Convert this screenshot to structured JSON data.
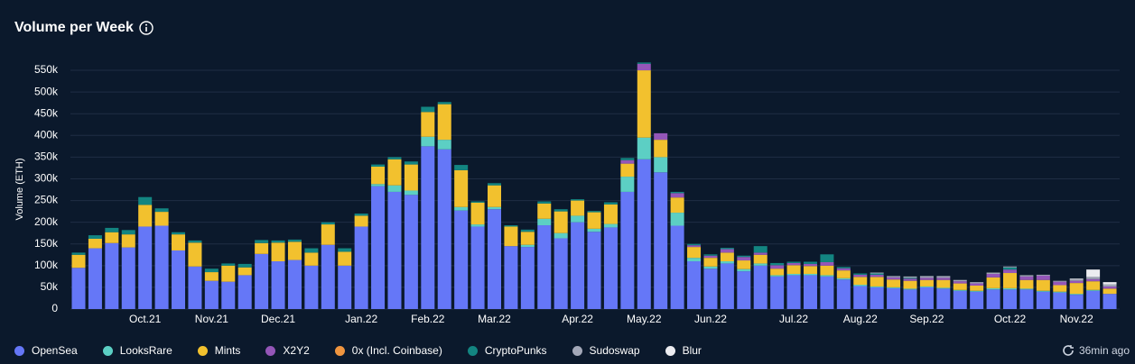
{
  "chart_data": {
    "type": "stacked-bar",
    "title": "Volume per Week",
    "ylabel": "Volume (ETH)",
    "note": "36min ago",
    "categories": [
      null,
      null,
      null,
      null,
      "Oct.21",
      null,
      null,
      null,
      "Nov.21",
      null,
      null,
      null,
      "Dec.21",
      null,
      null,
      null,
      null,
      "Jan.22",
      null,
      null,
      null,
      "Feb.22",
      null,
      null,
      null,
      "Mar.22",
      null,
      null,
      null,
      null,
      "Apr.22",
      null,
      null,
      null,
      "May.22",
      null,
      null,
      null,
      "Jun.22",
      null,
      null,
      null,
      null,
      "Jul.22",
      null,
      null,
      null,
      "Aug.22",
      null,
      null,
      null,
      "Sep.22",
      null,
      null,
      null,
      null,
      "Oct.22",
      null,
      null,
      null,
      "Nov.22",
      null,
      null
    ],
    "ylim": [
      0,
      575000
    ],
    "yticks": [
      0,
      {
        "value": 50000,
        "label": "50k"
      },
      {
        "value": 100000,
        "label": "100k"
      },
      {
        "value": 150000,
        "label": "150k"
      },
      {
        "value": 200000,
        "label": "200k"
      },
      {
        "value": 250000,
        "label": "250k"
      },
      {
        "value": 300000,
        "label": "300k"
      },
      {
        "value": 350000,
        "label": "350k"
      },
      {
        "value": 400000,
        "label": "400k"
      },
      {
        "value": 450000,
        "label": "450k"
      },
      {
        "value": 500000,
        "label": "500k"
      },
      {
        "value": 550000,
        "label": "550k"
      }
    ],
    "grid": true,
    "series": [
      {
        "name": "OpenSea",
        "color": "#6577f7",
        "values": [
          95000,
          140000,
          152000,
          142000,
          190000,
          192000,
          135000,
          98000,
          65000,
          63000,
          78000,
          127000,
          110000,
          113000,
          100000,
          148000,
          100000,
          190000,
          283000,
          270000,
          263000,
          375000,
          368000,
          227000,
          190000,
          230000,
          145000,
          143000,
          193000,
          163000,
          200000,
          178000,
          188000,
          270000,
          345000,
          315000,
          192000,
          110000,
          93000,
          105000,
          87000,
          100000,
          75000,
          78000,
          78000,
          75000,
          68000,
          53000,
          50000,
          48000,
          45000,
          50000,
          47000,
          42000,
          40000,
          45000,
          45000,
          45000,
          40000,
          38000,
          33000,
          42000,
          35000
        ]
      },
      {
        "name": "LooksRare",
        "color": "#5ccfc4",
        "values": [
          0,
          0,
          0,
          0,
          0,
          0,
          0,
          0,
          0,
          0,
          0,
          0,
          0,
          0,
          0,
          0,
          0,
          0,
          5000,
          15000,
          10000,
          22000,
          22000,
          8000,
          5000,
          5000,
          0,
          5000,
          15000,
          12000,
          15000,
          7000,
          8000,
          35000,
          50000,
          35000,
          30000,
          8000,
          5000,
          5000,
          5000,
          5000,
          3000,
          3000,
          3000,
          3000,
          3000,
          3000,
          2000,
          2000,
          2000,
          2000,
          2000,
          2000,
          2000,
          3000,
          3000,
          2000,
          2000,
          2000,
          2000,
          2000,
          0
        ]
      },
      {
        "name": "Mints",
        "color": "#f2c12e",
        "values": [
          30000,
          22000,
          25000,
          30000,
          50000,
          32000,
          37000,
          55000,
          20000,
          37000,
          18000,
          25000,
          43000,
          42000,
          30000,
          47000,
          32000,
          25000,
          40000,
          60000,
          60000,
          57000,
          82000,
          85000,
          50000,
          50000,
          45000,
          30000,
          35000,
          50000,
          35000,
          38000,
          45000,
          30000,
          155000,
          40000,
          35000,
          25000,
          20000,
          20000,
          20000,
          20000,
          15000,
          20000,
          18000,
          22000,
          18000,
          18000,
          22000,
          18000,
          18000,
          15000,
          18000,
          15000,
          12000,
          25000,
          35000,
          20000,
          25000,
          15000,
          25000,
          20000,
          12000
        ]
      },
      {
        "name": "X2Y2",
        "color": "#9456b8",
        "values": [
          0,
          0,
          0,
          0,
          0,
          0,
          0,
          0,
          0,
          0,
          0,
          0,
          0,
          0,
          0,
          0,
          0,
          0,
          0,
          0,
          0,
          0,
          0,
          0,
          0,
          0,
          0,
          0,
          0,
          0,
          0,
          0,
          0,
          8000,
          15000,
          15000,
          10000,
          4000,
          5000,
          8000,
          8000,
          5000,
          8000,
          5000,
          5000,
          8000,
          5000,
          5000,
          5000,
          5000,
          5000,
          5000,
          5000,
          5000,
          5000,
          8000,
          8000,
          8000,
          10000,
          8000,
          5000,
          5000,
          5000
        ]
      },
      {
        "name": "0x (Incl. Coinbase)",
        "color": "#f0953f",
        "values": [
          0,
          0,
          0,
          0,
          0,
          0,
          0,
          0,
          0,
          0,
          0,
          0,
          0,
          0,
          0,
          0,
          0,
          0,
          0,
          0,
          0,
          0,
          0,
          0,
          0,
          0,
          0,
          0,
          0,
          0,
          0,
          0,
          0,
          0,
          0,
          0,
          0,
          0,
          0,
          0,
          0,
          0,
          0,
          0,
          0,
          0,
          0,
          0,
          0,
          0,
          0,
          0,
          0,
          0,
          0,
          0,
          0,
          0,
          0,
          0,
          0,
          0,
          0
        ]
      },
      {
        "name": "CryptoPunks",
        "color": "#138581",
        "values": [
          5000,
          8000,
          10000,
          10000,
          18000,
          8000,
          5000,
          5000,
          8000,
          5000,
          8000,
          7000,
          5000,
          5000,
          10000,
          5000,
          8000,
          5000,
          5000,
          5000,
          7000,
          12000,
          5000,
          12000,
          3000,
          5000,
          3000,
          5000,
          5000,
          5000,
          3000,
          3000,
          5000,
          5000,
          3000,
          0,
          3000,
          3000,
          3000,
          3000,
          3000,
          15000,
          5000,
          3000,
          5000,
          18000,
          3000,
          3000,
          3000,
          0,
          2000,
          0,
          0,
          0,
          0,
          0,
          5000,
          0,
          0,
          0,
          0,
          0,
          0
        ]
      },
      {
        "name": "Sudoswap",
        "color": "#a3a8b8",
        "values": [
          0,
          0,
          0,
          0,
          0,
          0,
          0,
          0,
          0,
          0,
          0,
          0,
          0,
          0,
          0,
          0,
          0,
          0,
          0,
          0,
          0,
          0,
          0,
          0,
          0,
          0,
          0,
          0,
          0,
          0,
          0,
          0,
          0,
          0,
          0,
          0,
          0,
          0,
          0,
          0,
          0,
          0,
          0,
          0,
          0,
          0,
          0,
          0,
          2000,
          3000,
          3000,
          4000,
          4000,
          3000,
          3000,
          3000,
          2000,
          3000,
          2000,
          2000,
          3000,
          5000,
          5000
        ]
      },
      {
        "name": "Blur",
        "color": "#ececf0",
        "values": [
          0,
          0,
          0,
          0,
          0,
          0,
          0,
          0,
          0,
          0,
          0,
          0,
          0,
          0,
          0,
          0,
          0,
          0,
          0,
          0,
          0,
          0,
          0,
          0,
          0,
          0,
          0,
          0,
          0,
          0,
          0,
          0,
          0,
          0,
          0,
          0,
          0,
          0,
          0,
          0,
          0,
          0,
          0,
          0,
          0,
          0,
          0,
          0,
          0,
          0,
          0,
          0,
          0,
          0,
          0,
          0,
          0,
          0,
          0,
          0,
          2000,
          17000,
          5000
        ]
      }
    ]
  }
}
